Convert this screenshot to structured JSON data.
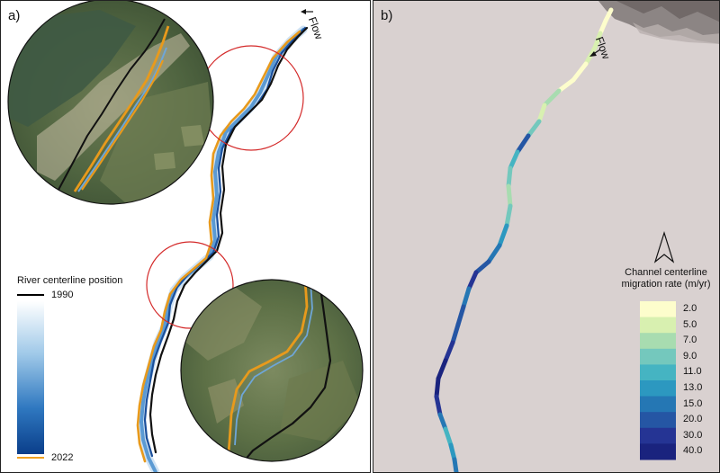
{
  "panel_a": {
    "label": "a)",
    "flow_label": "Flow",
    "legend": {
      "title": "River centerline position",
      "start_year": "1990",
      "end_year": "2022",
      "start_color": "#000000",
      "end_color": "#f0a020",
      "gradient_colors": [
        "#ffffff",
        "#9ec8e8",
        "#2f78c0",
        "#0a3e8a"
      ]
    },
    "highlight_circle_color": "#d42a2a"
  },
  "panel_b": {
    "label": "b)",
    "flow_label": "Flow",
    "colorbar": {
      "title_line1": "Channel centerline",
      "title_line2": "migration rate (m/yr)",
      "ticks": [
        "2.0",
        "5.0",
        "7.0",
        "9.0",
        "11.0",
        "13.0",
        "15.0",
        "20.0",
        "30.0",
        "40.0"
      ],
      "colors": [
        "#fdfdcc",
        "#d8f0b0",
        "#a8dcb0",
        "#74c8bd",
        "#45b4c2",
        "#2c98c0",
        "#2577b4",
        "#2556a4",
        "#253494",
        "#1a237e"
      ]
    },
    "north_arrow_icon": "north-arrow-icon"
  }
}
